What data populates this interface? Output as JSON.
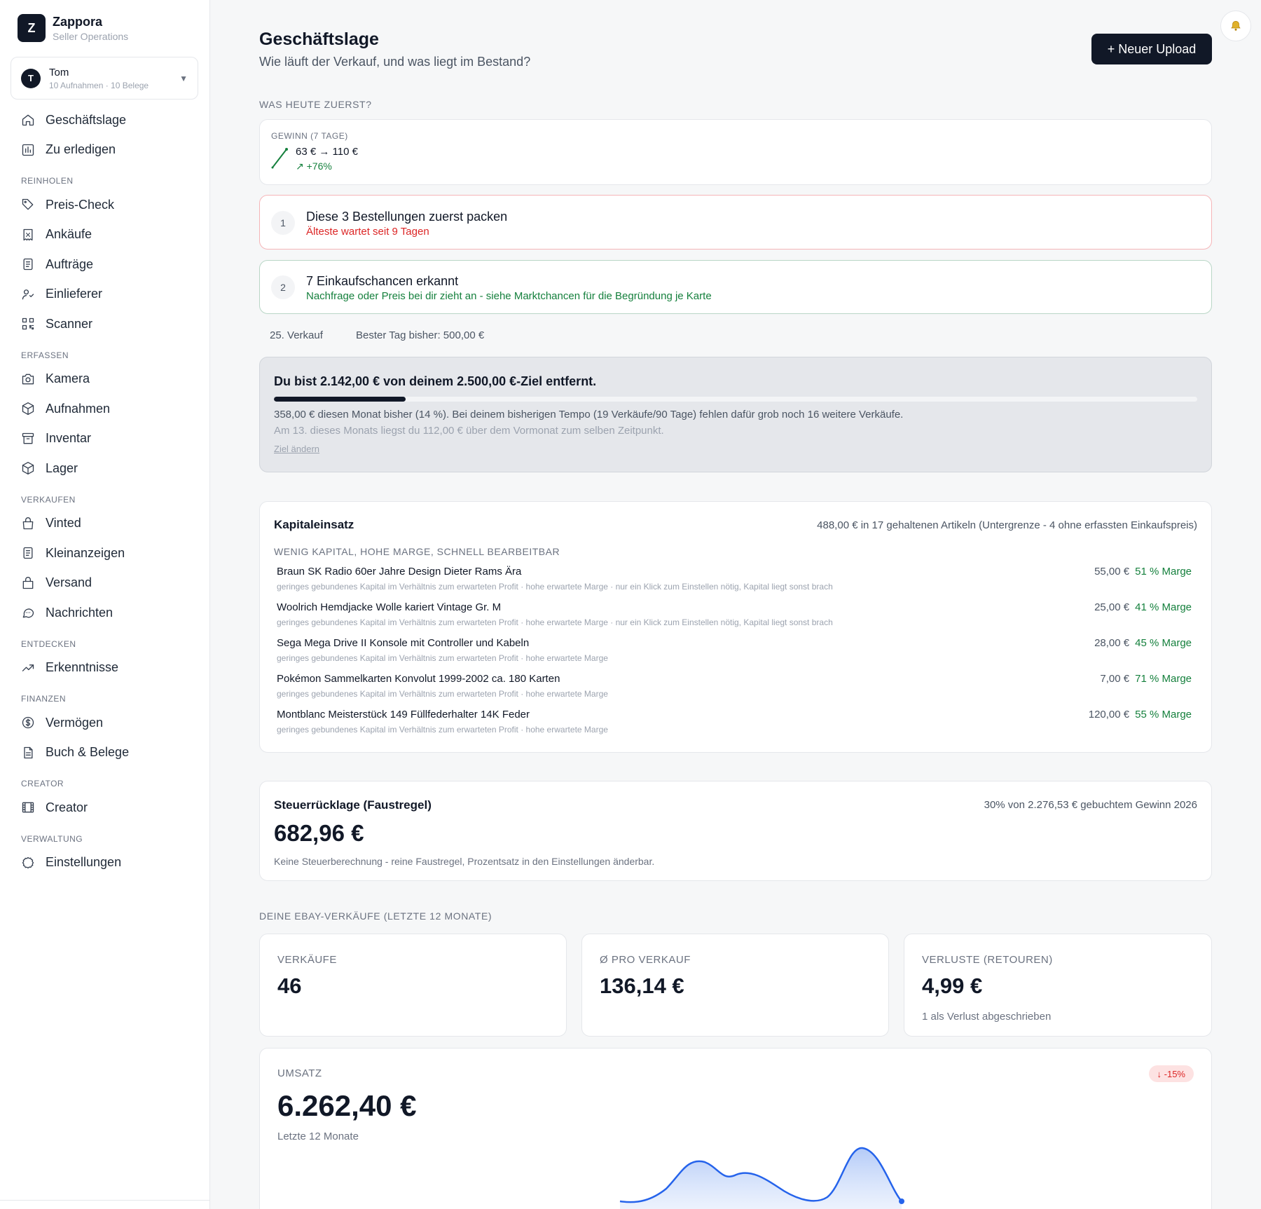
{
  "brand": {
    "logo_letter": "Z",
    "name": "Zappora",
    "subtitle": "Seller Operations"
  },
  "user": {
    "initial": "T",
    "name": "Tom",
    "meta": "10 Aufnahmen · 10 Belege",
    "caret": "▼"
  },
  "nav": {
    "top": [
      {
        "label": "Geschäftslage",
        "icon": "home-icon"
      },
      {
        "label": "Zu erledigen",
        "icon": "chart-bars-icon"
      }
    ],
    "sections": [
      {
        "title": "REINHOLEN",
        "items": [
          {
            "label": "Preis-Check",
            "icon": "tag-icon"
          },
          {
            "label": "Ankäufe",
            "icon": "receipt-icon"
          },
          {
            "label": "Aufträge",
            "icon": "clipboard-icon"
          },
          {
            "label": "Einlieferer",
            "icon": "users-icon"
          },
          {
            "label": "Scanner",
            "icon": "qr-code-icon"
          }
        ]
      },
      {
        "title": "ERFASSEN",
        "items": [
          {
            "label": "Kamera",
            "icon": "camera-icon"
          },
          {
            "label": "Aufnahmen",
            "icon": "box-icon"
          },
          {
            "label": "Inventar",
            "icon": "archive-icon"
          },
          {
            "label": "Lager",
            "icon": "package-icon"
          }
        ]
      },
      {
        "title": "VERKAUFEN",
        "items": [
          {
            "label": "Vinted",
            "icon": "shopping-bag-icon"
          },
          {
            "label": "Kleinanzeigen",
            "icon": "document-icon"
          },
          {
            "label": "Versand",
            "icon": "lock-bag-icon"
          },
          {
            "label": "Nachrichten",
            "icon": "message-icon"
          }
        ]
      },
      {
        "title": "ENTDECKEN",
        "items": [
          {
            "label": "Erkenntnisse",
            "icon": "trending-up-icon"
          }
        ]
      },
      {
        "title": "FINANZEN",
        "items": [
          {
            "label": "Vermögen",
            "icon": "dollar-circle-icon"
          },
          {
            "label": "Buch & Belege",
            "icon": "file-text-icon"
          }
        ]
      },
      {
        "title": "CREATOR",
        "items": [
          {
            "label": "Creator",
            "icon": "film-icon"
          }
        ]
      },
      {
        "title": "VERWALTUNG",
        "items": [
          {
            "label": "Einstellungen",
            "icon": "gear-icon"
          }
        ]
      }
    ]
  },
  "header": {
    "title": "Geschäftslage",
    "subtitle": "Wie läuft der Verkauf, und was liegt im Bestand?",
    "upload_label": "+ Neuer Upload",
    "bell_icon": "bell-icon"
  },
  "today": {
    "section_label": "WAS HEUTE ZUERST?",
    "gain": {
      "label": "GEWINN (7 TAGE)",
      "values": "63 € → 110 €",
      "change": "↗ +76%"
    },
    "tasks": [
      {
        "num": "1",
        "title": "Diese 3 Bestellungen zuerst packen",
        "sub": "Älteste wartet seit 9 Tagen",
        "sub_color": "#dc2626",
        "border": "#f5b5b8"
      },
      {
        "num": "2",
        "title": "7 Einkaufschancen erkannt",
        "sub": "Nachfrage oder Preis bei dir zieht an - siehe Marktchancen für die Begründung je Karte",
        "sub_color": "#15803d",
        "border": "#b9d6c6"
      }
    ],
    "stats": {
      "sale_count": "25. Verkauf",
      "best_day": "Bester Tag bisher: 500,00 €"
    }
  },
  "goal": {
    "title": "Du bist 2.142,00 € von deinem 2.500,00 €-Ziel entfernt.",
    "progress": 0.143,
    "line1": "358,00 € diesen Monat bisher (14 %). Bei deinem bisherigen Tempo (19 Verkäufe/90 Tage) fehlen dafür grob noch 16 weitere Verkäufe.",
    "line2": "Am 13. dieses Monats liegst du 112,00 € über dem Vormonat zum selben Zeitpunkt.",
    "link": "Ziel ändern"
  },
  "kapital": {
    "title": "Kapitaleinsatz",
    "meta": "488,00 € in 17 gehaltenen Artikeln (Untergrenze - 4 ohne erfassten Einkaufspreis)",
    "section": "WENIG KAPITAL, HOHE MARGE, SCHNELL BEARBEITBAR",
    "items": [
      {
        "name": "Braun SK Radio 60er Jahre Design Dieter Rams Ära",
        "desc": "geringes gebundenes Kapital im Verhältnis zum erwarteten Profit · hohe erwartete Marge · nur ein Klick zum Einstellen nötig, Kapital liegt sonst brach",
        "price": "55,00 €",
        "marge": "51 % Marge"
      },
      {
        "name": "Woolrich Hemdjacke Wolle kariert Vintage Gr. M",
        "desc": "geringes gebundenes Kapital im Verhältnis zum erwarteten Profit · hohe erwartete Marge · nur ein Klick zum Einstellen nötig, Kapital liegt sonst brach",
        "price": "25,00 €",
        "marge": "41 % Marge"
      },
      {
        "name": "Sega Mega Drive II Konsole mit Controller und Kabeln",
        "desc": "geringes gebundenes Kapital im Verhältnis zum erwarteten Profit · hohe erwartete Marge",
        "price": "28,00 €",
        "marge": "45 % Marge"
      },
      {
        "name": "Pokémon Sammelkarten Konvolut 1999-2002 ca. 180 Karten",
        "desc": "geringes gebundenes Kapital im Verhältnis zum erwarteten Profit · hohe erwartete Marge",
        "price": "7,00 €",
        "marge": "71 % Marge"
      },
      {
        "name": "Montblanc Meisterstück 149 Füllfederhalter 14K Feder",
        "desc": "geringes gebundenes Kapital im Verhältnis zum erwarteten Profit · hohe erwartete Marge",
        "price": "120,00 €",
        "marge": "55 % Marge"
      }
    ]
  },
  "steuer": {
    "title": "Steuerrücklage (Faustregel)",
    "meta": "30% von 2.276,53 € gebuchtem Gewinn 2026",
    "value": "682,96 €",
    "note": "Keine Steuerberechnung - reine Faustregel, Prozentsatz in den Einstellungen änderbar."
  },
  "ebay": {
    "section_label": "DEINE EBAY-VERKÄUFE (LETZTE 12 MONATE)",
    "kpis": [
      {
        "label": "VERKÄUFE",
        "value": "46",
        "sub": ""
      },
      {
        "label": "Ø PRO VERKAUF",
        "value": "136,14 €",
        "sub": ""
      },
      {
        "label": "VERLUSTE (RETOUREN)",
        "value": "4,99 €",
        "sub": "1 als Verlust abgeschrieben"
      }
    ],
    "umsatz": {
      "label": "UMSATZ",
      "value": "6.262,40 €",
      "sub": "Letzte 12 Monate",
      "badge": "↓ -15%"
    }
  },
  "colors": {
    "accent": "#111827",
    "positive": "#15803d",
    "negative": "#dc2626",
    "chart_line": "#2563eb"
  }
}
